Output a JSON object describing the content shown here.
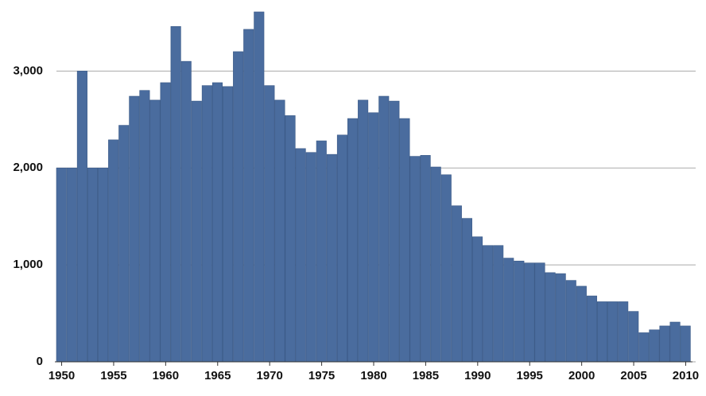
{
  "chart_data": {
    "type": "bar",
    "x": [
      1950,
      1951,
      1952,
      1953,
      1954,
      1955,
      1956,
      1957,
      1958,
      1959,
      1960,
      1961,
      1962,
      1963,
      1964,
      1965,
      1966,
      1967,
      1968,
      1969,
      1970,
      1971,
      1972,
      1973,
      1974,
      1975,
      1976,
      1977,
      1978,
      1979,
      1980,
      1981,
      1982,
      1983,
      1984,
      1985,
      1986,
      1987,
      1988,
      1989,
      1990,
      1991,
      1992,
      1993,
      1994,
      1995,
      1996,
      1997,
      1998,
      1999,
      2000,
      2001,
      2002,
      2003,
      2004,
      2005,
      2006,
      2007,
      2008,
      2009,
      2010
    ],
    "values": [
      2000,
      2000,
      3000,
      2000,
      2000,
      2290,
      2440,
      2740,
      2800,
      2700,
      2880,
      3460,
      3100,
      2690,
      2850,
      2880,
      2840,
      3200,
      3430,
      3610,
      2850,
      2700,
      2540,
      2200,
      2160,
      2280,
      2140,
      2340,
      2510,
      2700,
      2570,
      2740,
      2690,
      2510,
      2120,
      2130,
      2010,
      1930,
      1610,
      1480,
      1290,
      1200,
      1200,
      1070,
      1040,
      1020,
      1020,
      920,
      910,
      840,
      780,
      680,
      620,
      620,
      620,
      520,
      300,
      330,
      370,
      410,
      370
    ],
    "color": "#4a6c9e",
    "xlim": [
      1949.5,
      2010.5
    ],
    "xticks": [
      1950,
      1955,
      1960,
      1965,
      1970,
      1975,
      1980,
      1985,
      1990,
      1995,
      2000,
      2005,
      2010
    ],
    "ylim": [
      0,
      3700
    ],
    "yticks": [
      0,
      {
        "value": 1000,
        "label": "1,000"
      },
      {
        "value": 2000,
        "label": "2,000"
      },
      {
        "value": 3000,
        "label": "3,000"
      }
    ],
    "grid": true
  }
}
